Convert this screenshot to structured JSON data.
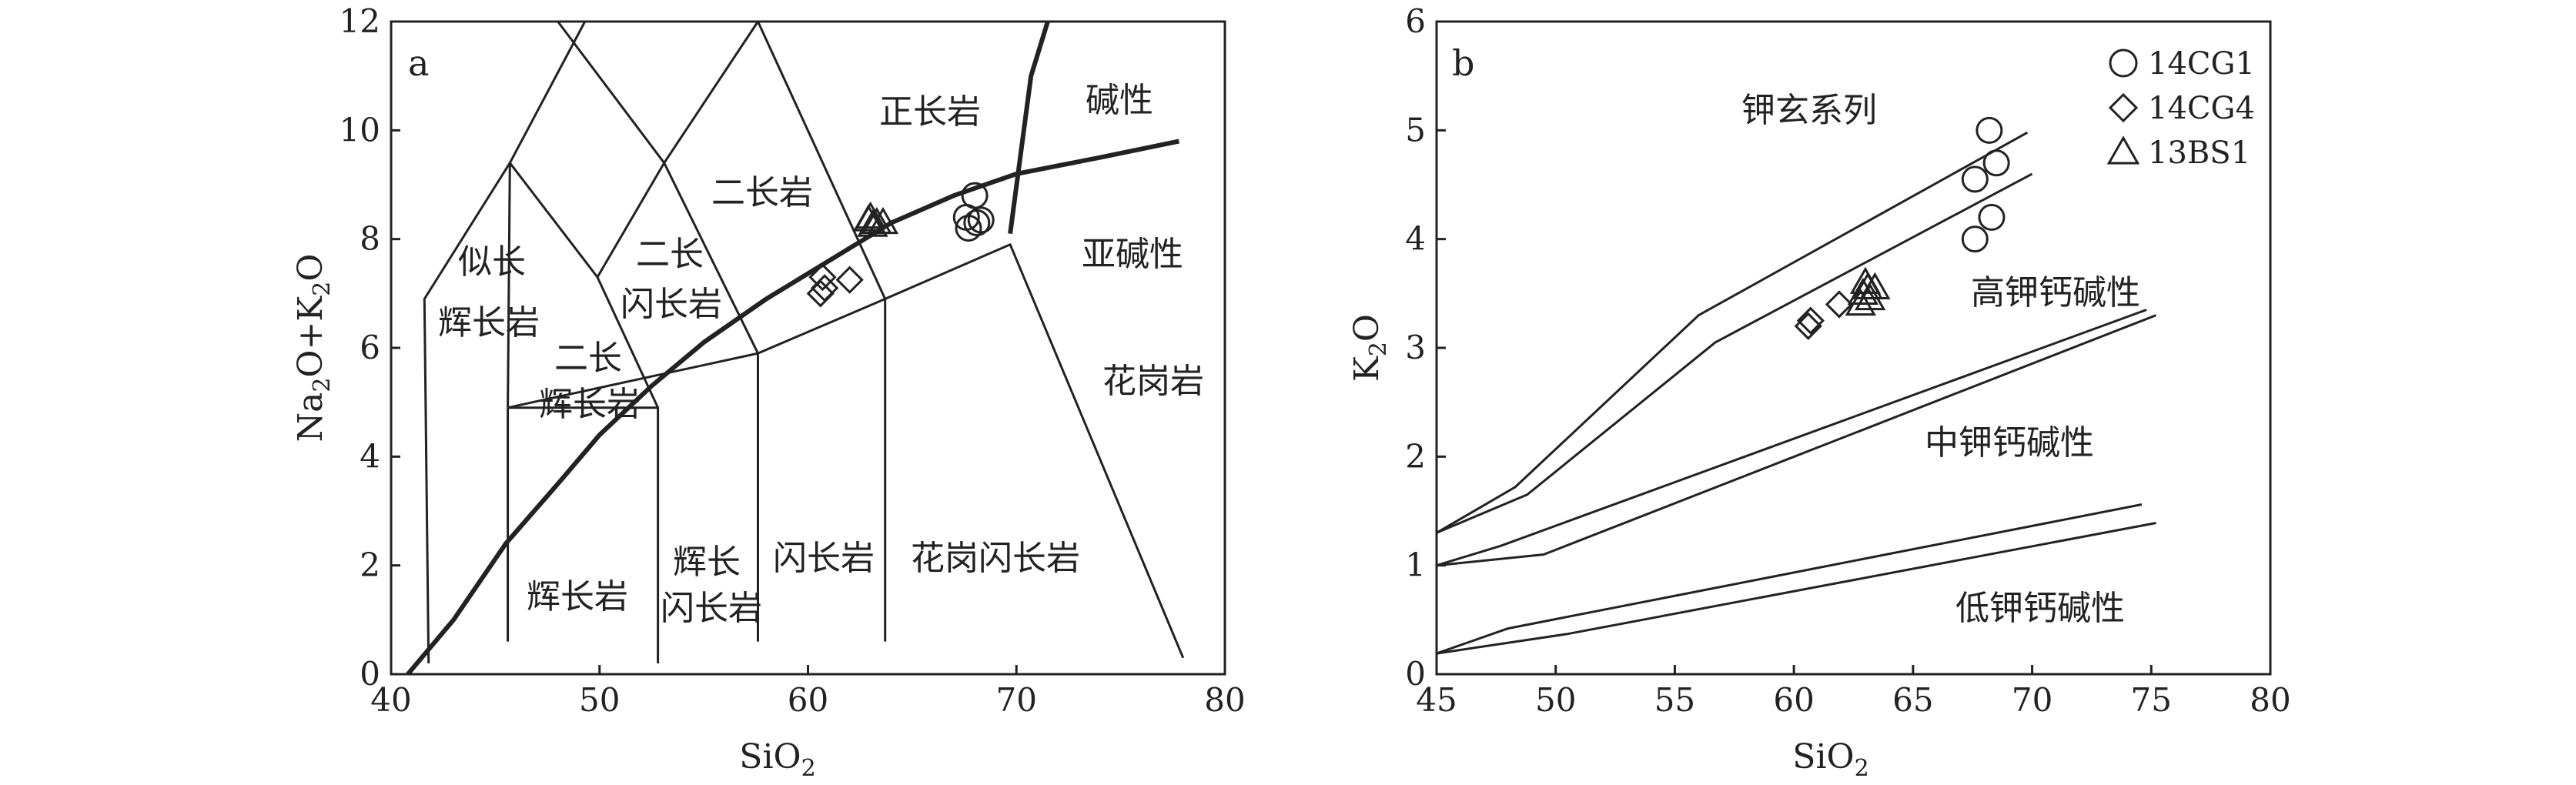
{
  "chart_data": [
    {
      "type": "scatter",
      "panel_label": "a",
      "xlabel_main": "SiO",
      "xlabel_sub": "2",
      "ylabel": [
        "Na",
        "2",
        "O+K",
        "2",
        "O"
      ],
      "xlim": [
        40,
        80
      ],
      "ylim": [
        0,
        12
      ],
      "x_ticks": [
        40,
        50,
        60,
        70,
        80
      ],
      "y_ticks": [
        0,
        2,
        4,
        6,
        8,
        10,
        12
      ],
      "field_labels": [
        "似长",
        "辉长岩",
        "二长",
        "闪长岩",
        "二长",
        "辉长岩",
        "二长岩",
        "正长岩",
        "碱性",
        "亚碱性",
        "花岗岩",
        "辉长岩",
        "辉长",
        "闪长岩",
        "闪长岩",
        "花岗闪长岩"
      ],
      "series": [
        {
          "name": "14CG1",
          "marker": "circle",
          "points": [
            [
              68.0,
              8.8
            ],
            [
              67.6,
              8.4
            ],
            [
              68.3,
              8.35
            ],
            [
              67.7,
              8.2
            ],
            [
              68.1,
              8.3
            ]
          ]
        },
        {
          "name": "14CG4",
          "marker": "diamond",
          "points": [
            [
              60.7,
              7.3
            ],
            [
              60.6,
              7.0
            ],
            [
              60.8,
              7.1
            ],
            [
              62.0,
              7.25
            ]
          ]
        },
        {
          "name": "13BS1",
          "marker": "triangle",
          "points": [
            [
              62.9,
              8.35
            ],
            [
              63.3,
              8.3
            ],
            [
              63.1,
              8.25
            ],
            [
              63.6,
              8.3
            ],
            [
              63.0,
              8.4
            ]
          ]
        }
      ],
      "boundaries": [
        {
          "kind": "heavy",
          "points": [
            [
              40.8,
              0
            ],
            [
              43,
              1
            ],
            [
              45.5,
              2.4
            ],
            [
              48,
              3.5
            ],
            [
              50,
              4.4
            ],
            [
              52.5,
              5.3
            ],
            [
              55,
              6.1
            ],
            [
              58,
              6.9
            ],
            [
              61,
              7.6
            ],
            [
              64,
              8.3
            ],
            [
              67,
              8.8
            ],
            [
              70,
              9.2
            ],
            [
              74,
              9.5
            ],
            [
              77.8,
              9.8
            ]
          ]
        },
        {
          "kind": "heavy",
          "points": [
            [
              69.7,
              8.1
            ],
            [
              70.7,
              11.0
            ],
            [
              71.5,
              12.0
            ]
          ]
        },
        {
          "kind": "thin",
          "points": [
            [
              41.8,
              0.2
            ],
            [
              41.6,
              6.9
            ],
            [
              45.7,
              9.4
            ],
            [
              49.3,
              12.0
            ]
          ]
        },
        {
          "kind": "thin",
          "points": [
            [
              45.7,
              9.4
            ],
            [
              49.9,
              7.3
            ],
            [
              53.1,
              9.4
            ],
            [
              57.6,
              5.9
            ],
            [
              63.7,
              6.9
            ],
            [
              69.7,
              7.9
            ],
            [
              78.0,
              0.3
            ]
          ]
        },
        {
          "kind": "thin",
          "points": [
            [
              49.9,
              7.3
            ],
            [
              52.8,
              4.9
            ],
            [
              45.6,
              4.9
            ]
          ]
        },
        {
          "kind": "thin",
          "points": [
            [
              45.6,
              4.9
            ],
            [
              57.6,
              5.9
            ]
          ]
        },
        {
          "kind": "thin",
          "points": [
            [
              52.8,
              4.9
            ],
            [
              52.8,
              0.2
            ]
          ]
        },
        {
          "kind": "thin",
          "points": [
            [
              45.6,
              4.9
            ],
            [
              45.6,
              0.6
            ]
          ]
        },
        {
          "kind": "thin",
          "points": [
            [
              57.6,
              5.9
            ],
            [
              57.6,
              0.6
            ]
          ]
        },
        {
          "kind": "thin",
          "points": [
            [
              63.7,
              6.9
            ],
            [
              63.7,
              0.6
            ]
          ]
        },
        {
          "kind": "thin",
          "points": [
            [
              48.0,
              12.0
            ],
            [
              53.1,
              9.4
            ],
            [
              57.6,
              12.0
            ],
            [
              63.7,
              6.9
            ]
          ]
        },
        {
          "kind": "thin",
          "points": [
            [
              45.7,
              9.4
            ],
            [
              45.6,
              4.9
            ]
          ]
        }
      ]
    },
    {
      "type": "scatter",
      "panel_label": "b",
      "xlabel_main": "SiO",
      "xlabel_sub": "2",
      "ylabel": [
        "K",
        "2",
        "O"
      ],
      "xlim": [
        45,
        80
      ],
      "ylim": [
        0,
        6
      ],
      "x_ticks": [
        45,
        50,
        55,
        60,
        65,
        70,
        75,
        80
      ],
      "y_ticks": [
        0,
        1,
        2,
        3,
        4,
        5,
        6
      ],
      "field_labels": [
        "钾玄系列",
        "高钾钙碱性",
        "中钾钙碱性",
        "低钾钙碱性"
      ],
      "series": [
        {
          "name": "14CG1",
          "marker": "circle",
          "points": [
            [
              68.2,
              5.0
            ],
            [
              68.5,
              4.7
            ],
            [
              67.6,
              4.55
            ],
            [
              68.3,
              4.2
            ],
            [
              67.6,
              4.0
            ]
          ]
        },
        {
          "name": "14CG4",
          "marker": "diamond",
          "points": [
            [
              60.7,
              3.25
            ],
            [
              61.9,
              3.4
            ],
            [
              60.6,
              3.2
            ]
          ]
        },
        {
          "name": "13BS1",
          "marker": "triangle",
          "points": [
            [
              63.0,
              3.6
            ],
            [
              63.4,
              3.55
            ],
            [
              62.9,
              3.5
            ],
            [
              63.2,
              3.45
            ],
            [
              62.8,
              3.4
            ],
            [
              63.1,
              3.55
            ]
          ]
        }
      ],
      "boundaries": [
        {
          "kind": "thin",
          "points": [
            [
              45.0,
              1.3
            ],
            [
              48.3,
              1.72
            ],
            [
              56.0,
              3.3
            ],
            [
              69.8,
              4.98
            ]
          ]
        },
        {
          "kind": "thin",
          "points": [
            [
              45.0,
              1.3
            ],
            [
              48.8,
              1.65
            ],
            [
              56.7,
              3.05
            ],
            [
              70.0,
              4.6
            ]
          ]
        },
        {
          "kind": "thin",
          "points": [
            [
              45.0,
              1.0
            ],
            [
              47.7,
              1.18
            ],
            [
              74.8,
              3.35
            ]
          ]
        },
        {
          "kind": "thin",
          "points": [
            [
              45.0,
              1.0
            ],
            [
              49.5,
              1.1
            ],
            [
              75.2,
              3.3
            ]
          ]
        },
        {
          "kind": "thin",
          "points": [
            [
              45.0,
              0.19
            ],
            [
              48.0,
              0.42
            ],
            [
              74.6,
              1.56
            ]
          ]
        },
        {
          "kind": "thin",
          "points": [
            [
              45.0,
              0.19
            ],
            [
              50.5,
              0.37
            ],
            [
              75.2,
              1.39
            ]
          ]
        }
      ]
    }
  ],
  "legend": [
    {
      "name": "14CG1",
      "marker": "circle"
    },
    {
      "name": "14CG4",
      "marker": "diamond"
    },
    {
      "name": "13BS1",
      "marker": "triangle"
    }
  ]
}
